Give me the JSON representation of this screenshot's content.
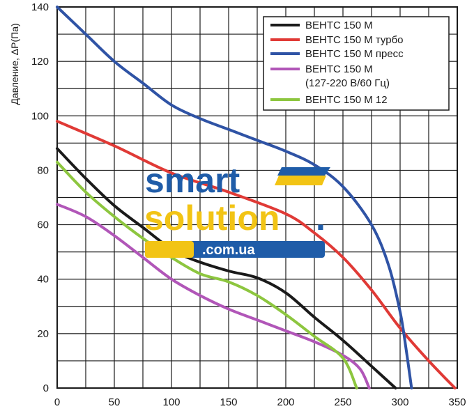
{
  "chart_data": {
    "type": "line",
    "xlabel": "",
    "ylabel": "Давление, ΔP(Па)",
    "xlim": [
      0,
      350
    ],
    "ylim": [
      0,
      140
    ],
    "x_ticks": [
      "0",
      "50",
      "100",
      "150",
      "200",
      "250",
      "300",
      "350"
    ],
    "y_ticks": [
      "0",
      "20",
      "40",
      "60",
      "80",
      "100",
      "120",
      "140"
    ],
    "grid": true,
    "legend_position": "top-right",
    "series": [
      {
        "name": "ВЕНТС 150 М",
        "color": "#1a1a1a",
        "points": [
          [
            0,
            88
          ],
          [
            25,
            77
          ],
          [
            50,
            67
          ],
          [
            75,
            59
          ],
          [
            100,
            51
          ],
          [
            120,
            47
          ],
          [
            150,
            43
          ],
          [
            175,
            40.5
          ],
          [
            200,
            35
          ],
          [
            225,
            26
          ],
          [
            250,
            17.5
          ],
          [
            275,
            8
          ],
          [
            296,
            0
          ]
        ]
      },
      {
        "name": "ВЕНТС 150 М турбо",
        "color": "#e03a36",
        "points": [
          [
            0,
            98
          ],
          [
            50,
            89
          ],
          [
            100,
            79
          ],
          [
            150,
            72
          ],
          [
            200,
            64
          ],
          [
            225,
            57
          ],
          [
            250,
            48
          ],
          [
            275,
            36
          ],
          [
            300,
            22
          ],
          [
            325,
            10
          ],
          [
            348,
            0
          ]
        ]
      },
      {
        "name": "ВЕНТС 150 М пресс",
        "color": "#2f53a5",
        "points": [
          [
            0,
            140
          ],
          [
            25,
            130
          ],
          [
            50,
            120
          ],
          [
            75,
            112
          ],
          [
            100,
            104
          ],
          [
            125,
            99
          ],
          [
            150,
            95
          ],
          [
            175,
            91
          ],
          [
            200,
            87
          ],
          [
            225,
            82
          ],
          [
            250,
            74
          ],
          [
            275,
            60
          ],
          [
            290,
            45
          ],
          [
            300,
            28
          ],
          [
            305,
            15
          ],
          [
            310,
            0
          ]
        ]
      },
      {
        "name": "ВЕНТС 150 М\n(127-220 В/60 Гц)",
        "color": "#b156b8",
        "points": [
          [
            0,
            67.5
          ],
          [
            25,
            63
          ],
          [
            50,
            56
          ],
          [
            75,
            48
          ],
          [
            100,
            40
          ],
          [
            125,
            34
          ],
          [
            150,
            29
          ],
          [
            175,
            25
          ],
          [
            200,
            21
          ],
          [
            225,
            17
          ],
          [
            250,
            12
          ],
          [
            265,
            7
          ],
          [
            273,
            0
          ]
        ]
      },
      {
        "name": "ВЕНТС 150 М 12",
        "color": "#8dc63f",
        "points": [
          [
            0,
            83
          ],
          [
            25,
            72
          ],
          [
            50,
            63
          ],
          [
            75,
            55
          ],
          [
            100,
            48
          ],
          [
            125,
            42
          ],
          [
            150,
            39
          ],
          [
            175,
            34
          ],
          [
            200,
            27
          ],
          [
            225,
            19
          ],
          [
            250,
            11
          ],
          [
            262,
            0
          ]
        ]
      }
    ]
  },
  "watermark": {
    "word1": "smart",
    "word2": "solution",
    "dot": ".",
    "domain": ".com.ua"
  },
  "colors": {
    "watermark_blue": "#1f5ca8",
    "watermark_yellow": "#f2c415",
    "grid": "#1a1a1a"
  }
}
